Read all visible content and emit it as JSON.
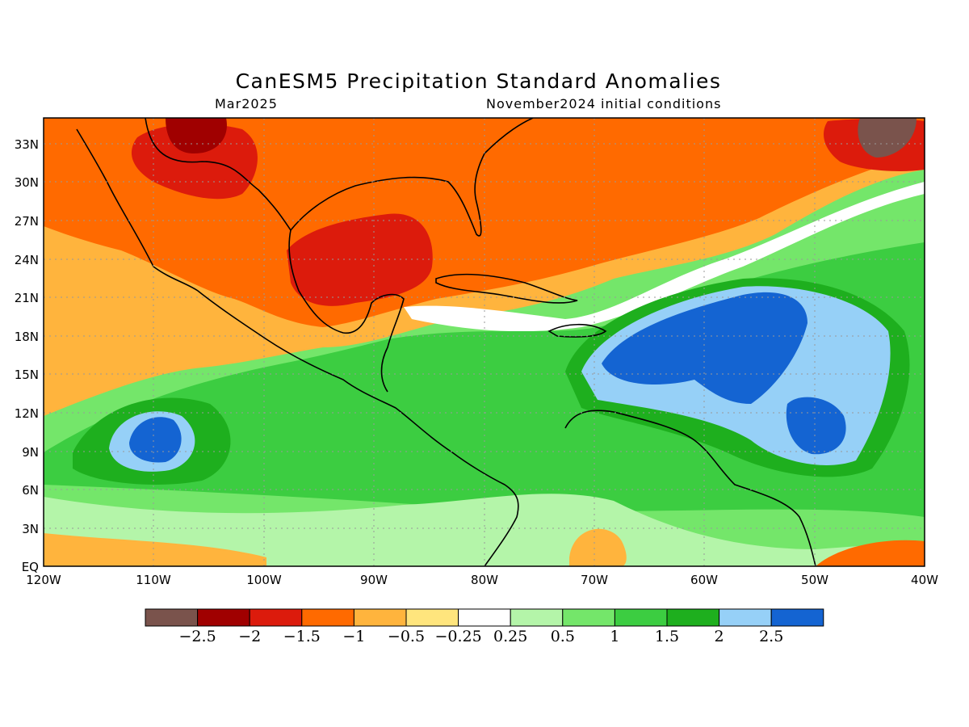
{
  "header": {
    "title": "CanESM5 Precipitation Standard Anomalies",
    "valid_time": "Mar2025",
    "init_label": "November2024 initial conditions"
  },
  "map": {
    "lon_range": [
      -120,
      -40
    ],
    "lat_range": [
      0,
      35
    ],
    "lon_ticks": [
      "120W",
      "110W",
      "100W",
      "90W",
      "80W",
      "70W",
      "60W",
      "50W",
      "40W"
    ],
    "lat_ticks": [
      "EQ",
      "3N",
      "6N",
      "9N",
      "12N",
      "15N",
      "18N",
      "21N",
      "24N",
      "27N",
      "30N",
      "33N"
    ],
    "grid": "dotted"
  },
  "colorbar": {
    "labels": [
      "-2.5",
      "-2",
      "-1.5",
      "-1",
      "-0.5",
      "-0.25",
      "0.25",
      "0.5",
      "1",
      "1.5",
      "2",
      "2.5"
    ],
    "colors": [
      "#7a534c",
      "#a00000",
      "#dc1b0c",
      "#ff6a00",
      "#ffb43d",
      "#ffe57d",
      "#ffffff",
      "#b4f5a9",
      "#74e66a",
      "#3ccd41",
      "#1eaf1e",
      "#96d0f7",
      "#1464d2"
    ]
  }
}
